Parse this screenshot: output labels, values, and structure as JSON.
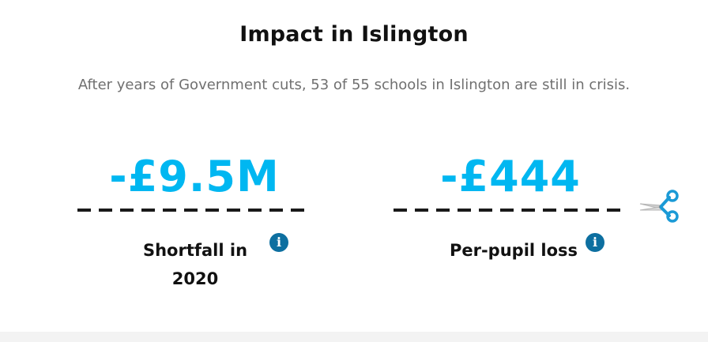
{
  "heading": {
    "prefix": "Impact in ",
    "place": "Islington"
  },
  "subtitle": "After years of Government cuts, 53 of 55 schools in Islington are still in crisis.",
  "stats": [
    {
      "value": "-£9.5M",
      "label": "Shortfall in 2020",
      "info_icon": "i"
    },
    {
      "value": "-£444",
      "label": "Per-pupil loss",
      "info_icon": "i"
    }
  ],
  "colors": {
    "accent": "#00b7f1",
    "info": "#0d6fa0",
    "text": "#111111",
    "muted": "#707070"
  },
  "icons": {
    "divider_end": "scissors-icon",
    "info": "info-icon"
  }
}
